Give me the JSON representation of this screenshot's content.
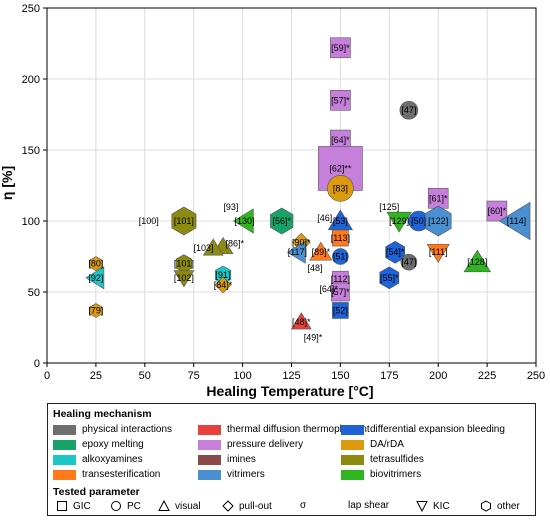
{
  "chart_data": {
    "type": "scatter",
    "xlabel": "Healing Temperature [°C]",
    "ylabel": "η [%]",
    "xlim": [
      0,
      250
    ],
    "ylim": [
      0,
      250
    ],
    "x_ticks": [
      0,
      25,
      50,
      75,
      100,
      125,
      150,
      175,
      200,
      225,
      250
    ],
    "y_ticks": [
      0,
      50,
      100,
      150,
      200,
      250
    ],
    "x_tick_labels": [
      "0",
      "25",
      "50",
      "75",
      "100",
      "125",
      "150",
      "175",
      "200",
      "225",
      "250"
    ],
    "y_tick_labels": [
      "0",
      "50",
      "100",
      "150",
      "200",
      "250"
    ],
    "grid": true,
    "legend_title": "Healing mechanism",
    "mechanisms": [
      {
        "key": "physical",
        "label": "physical interactions",
        "color": "#6e6e6e"
      },
      {
        "key": "thermal",
        "label": "thermal diffusion thermopl agent",
        "color": "#e8413c"
      },
      {
        "key": "diffexp",
        "label": "differential expansion bleeding",
        "color": "#1f63d6"
      },
      {
        "key": "epoxy",
        "label": "epoxy melting",
        "color": "#17a368"
      },
      {
        "key": "pressure",
        "label": "pressure delivery",
        "color": "#c77fdc"
      },
      {
        "key": "darda",
        "label": "DA/rDA",
        "color": "#dd9a0e"
      },
      {
        "key": "alkox",
        "label": "alkoxyamines",
        "color": "#1ac8c8"
      },
      {
        "key": "imines",
        "label": "imines",
        "color": "#8a4a4a"
      },
      {
        "key": "tetra",
        "label": "tetrasulfides",
        "color": "#8c8a10"
      },
      {
        "key": "trans",
        "label": "transesterification",
        "color": "#ff7a1a"
      },
      {
        "key": "vitri",
        "label": "vitrimers",
        "color": "#4a90d0"
      },
      {
        "key": "biovit",
        "label": "biovitrimers",
        "color": "#2fb51f"
      }
    ],
    "tested_title": "Tested parameter",
    "tested": [
      {
        "shape": "square",
        "label": "GIC"
      },
      {
        "shape": "circle",
        "label": "PC"
      },
      {
        "shape": "triangle",
        "label": "visual"
      },
      {
        "shape": "diamond",
        "label": "pull-out"
      },
      {
        "shape": "sigma",
        "label": "σ"
      },
      {
        "shape": "none",
        "label": "lap shear"
      },
      {
        "shape": "triangle-down",
        "label": "KIC"
      },
      {
        "shape": "hexagon",
        "label": "other"
      }
    ],
    "points": [
      {
        "x": 150,
        "y": 222,
        "shape": "square",
        "mech": "pressure",
        "label": "[59]*",
        "size": 10
      },
      {
        "x": 150,
        "y": 185,
        "shape": "square",
        "mech": "pressure",
        "label": "[57]*",
        "size": 10
      },
      {
        "x": 185,
        "y": 178,
        "shape": "circle",
        "mech": "physical",
        "label": "[47]",
        "size": 9
      },
      {
        "x": 150,
        "y": 157,
        "shape": "square",
        "mech": "pressure",
        "label": "[64]*",
        "size": 10
      },
      {
        "x": 150,
        "y": 137,
        "shape": "square",
        "mech": "pressure",
        "label": "[62]**",
        "size": 22
      },
      {
        "x": 150,
        "y": 123,
        "shape": "circle",
        "mech": "darda",
        "label": "[83]",
        "size": 13
      },
      {
        "x": 200,
        "y": 116,
        "shape": "square",
        "mech": "pressure",
        "label": "[61]*",
        "size": 10
      },
      {
        "x": 230,
        "y": 107,
        "shape": "square",
        "mech": "pressure",
        "label": "[60]*",
        "size": 10
      },
      {
        "x": 240,
        "y": 100,
        "shape": "triangle-left",
        "mech": "vitri",
        "label": "[114]",
        "size": 17
      },
      {
        "x": 70,
        "y": 100,
        "shape": "hexagon",
        "mech": "tetra",
        "label": "[101]",
        "size": 14
      },
      {
        "x": 101,
        "y": 100,
        "shape": "triangle-left",
        "mech": "biovit",
        "label": "[130]",
        "size": 11
      },
      {
        "x": 120,
        "y": 100,
        "shape": "hexagon",
        "mech": "epoxy",
        "label": "[56]*",
        "size": 13
      },
      {
        "x": 150,
        "y": 100,
        "shape": "triangle",
        "mech": "diffexp",
        "label": "[53]",
        "size": 11
      },
      {
        "x": 180,
        "y": 100,
        "shape": "triangle-down",
        "mech": "biovit",
        "label": "[129]",
        "size": 11
      },
      {
        "x": 190,
        "y": 100,
        "shape": "circle",
        "mech": "diffexp",
        "label": "[50]",
        "size": 10
      },
      {
        "x": 200,
        "y": 100,
        "shape": "hexagon",
        "mech": "vitri",
        "label": "[122]",
        "size": 15
      },
      {
        "x": 90,
        "y": 82,
        "shape": "triangle",
        "mech": "tetra",
        "label": "",
        "size": 9
      },
      {
        "x": 85,
        "y": 81,
        "shape": "triangle",
        "mech": "tetra",
        "label": "",
        "size": 9
      },
      {
        "x": 130,
        "y": 85,
        "shape": "diamond",
        "mech": "darda",
        "label": "[90]*",
        "size": 9
      },
      {
        "x": 150,
        "y": 88,
        "shape": "square",
        "mech": "trans",
        "label": "[113]",
        "size": 8
      },
      {
        "x": 128,
        "y": 78,
        "shape": "triangle-left",
        "mech": "vitri",
        "label": "[117]",
        "size": 10
      },
      {
        "x": 140,
        "y": 78,
        "shape": "triangle",
        "mech": "trans",
        "label": "[89]*",
        "size": 10
      },
      {
        "x": 150,
        "y": 75,
        "shape": "circle",
        "mech": "diffexp",
        "label": "[51]",
        "size": 8
      },
      {
        "x": 178,
        "y": 78,
        "shape": "hexagon",
        "mech": "diffexp",
        "label": "[54]*",
        "size": 11
      },
      {
        "x": 200,
        "y": 78,
        "shape": "triangle-down",
        "mech": "trans",
        "label": "[111]",
        "size": 10
      },
      {
        "x": 220,
        "y": 71,
        "shape": "triangle",
        "mech": "biovit",
        "label": "[128]",
        "size": 12
      },
      {
        "x": 25,
        "y": 70,
        "shape": "hexagon",
        "mech": "darda",
        "label": "[80]",
        "size": 7
      },
      {
        "x": 25,
        "y": 60,
        "shape": "triangle-left",
        "mech": "alkox",
        "label": "[92]",
        "size": 10
      },
      {
        "x": 70,
        "y": 70,
        "shape": "hexagon",
        "mech": "tetra",
        "label": "[101]",
        "size": 9
      },
      {
        "x": 70,
        "y": 60,
        "shape": "triangle-down",
        "mech": "tetra",
        "label": "[102]",
        "size": 9
      },
      {
        "x": 90,
        "y": 62,
        "shape": "hexagon",
        "mech": "alkox",
        "label": "[91]",
        "size": 9
      },
      {
        "x": 90,
        "y": 55,
        "shape": "diamond",
        "mech": "darda",
        "label": "[84]*",
        "size": 8
      },
      {
        "x": 150,
        "y": 59,
        "shape": "square",
        "mech": "pressure",
        "label": "[112]",
        "size": 8
      },
      {
        "x": 150,
        "y": 50,
        "shape": "square",
        "mech": "pressure",
        "label": "[57]*",
        "size": 9
      },
      {
        "x": 150,
        "y": 37,
        "shape": "square",
        "mech": "diffexp",
        "label": "[52]",
        "size": 8
      },
      {
        "x": 185,
        "y": 71,
        "shape": "circle",
        "mech": "physical",
        "label": "[47]",
        "size": 8
      },
      {
        "x": 175,
        "y": 60,
        "shape": "hexagon",
        "mech": "diffexp",
        "label": "[55]*",
        "size": 11
      },
      {
        "x": 130,
        "y": 29,
        "shape": "triangle",
        "mech": "thermal",
        "label": "[48]*",
        "size": 9
      },
      {
        "x": 25,
        "y": 37,
        "shape": "hexagon",
        "mech": "darda",
        "label": "[79]",
        "size": 7
      }
    ],
    "annotations": [
      {
        "x": 52,
        "y": 100,
        "text": "[100]"
      },
      {
        "x": 94,
        "y": 110,
        "text": "[93]"
      },
      {
        "x": 142,
        "y": 102,
        "text": "[46]"
      },
      {
        "x": 175,
        "y": 110,
        "text": "[125]"
      },
      {
        "x": 80,
        "y": 81,
        "text": "[103]"
      },
      {
        "x": 96,
        "y": 84,
        "text": "[86]*"
      },
      {
        "x": 137,
        "y": 67,
        "text": "[48]"
      },
      {
        "x": 144,
        "y": 52,
        "text": "[64]*"
      },
      {
        "x": 136,
        "y": 18,
        "text": "[49]*"
      }
    ]
  }
}
